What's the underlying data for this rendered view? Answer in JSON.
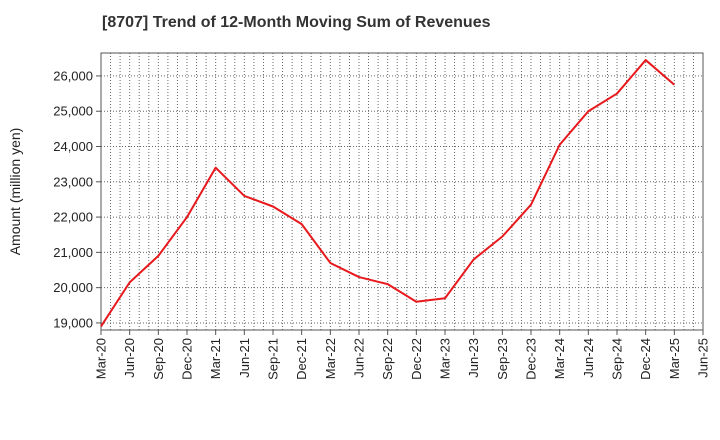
{
  "chart_data": {
    "type": "line",
    "title": "[8707]  Trend of 12-Month Moving Sum of Revenues",
    "xlabel": "",
    "ylabel": "Amount (million yen)",
    "ylim": [
      18800,
      26650
    ],
    "yticks": [
      19000,
      20000,
      21000,
      22000,
      23000,
      24000,
      25000,
      26000
    ],
    "ytick_labels": [
      "19,000",
      "20,000",
      "21,000",
      "22,000",
      "23,000",
      "24,000",
      "25,000",
      "26,000"
    ],
    "xtick_labels": [
      "Mar-20",
      "Jun-20",
      "Sep-20",
      "Dec-20",
      "Mar-21",
      "Jun-21",
      "Sep-21",
      "Dec-21",
      "Mar-22",
      "Jun-22",
      "Sep-22",
      "Dec-22",
      "Mar-23",
      "Jun-23",
      "Sep-23",
      "Dec-23",
      "Mar-24",
      "Jun-24",
      "Sep-24",
      "Dec-24",
      "Mar-25",
      "Jun-25"
    ],
    "grid": true,
    "grid_style": "dotted",
    "line_color": "#e8191d",
    "series": [
      {
        "x": [
          "Mar-20",
          "Jun-20",
          "Sep-20",
          "Dec-20",
          "Mar-21",
          "Jun-21",
          "Sep-21",
          "Dec-21",
          "Mar-22",
          "Jun-22",
          "Sep-22",
          "Dec-22",
          "Mar-23",
          "Jun-23",
          "Sep-23",
          "Dec-23",
          "Mar-24",
          "Jun-24",
          "Sep-24",
          "Dec-24",
          "Mar-25"
        ],
        "values": [
          18900,
          20150,
          20900,
          22000,
          23400,
          22600,
          22300,
          21800,
          20700,
          20300,
          20100,
          19600,
          19700,
          20800,
          21450,
          22350,
          24050,
          25000,
          25500,
          26450,
          25750
        ]
      }
    ]
  }
}
